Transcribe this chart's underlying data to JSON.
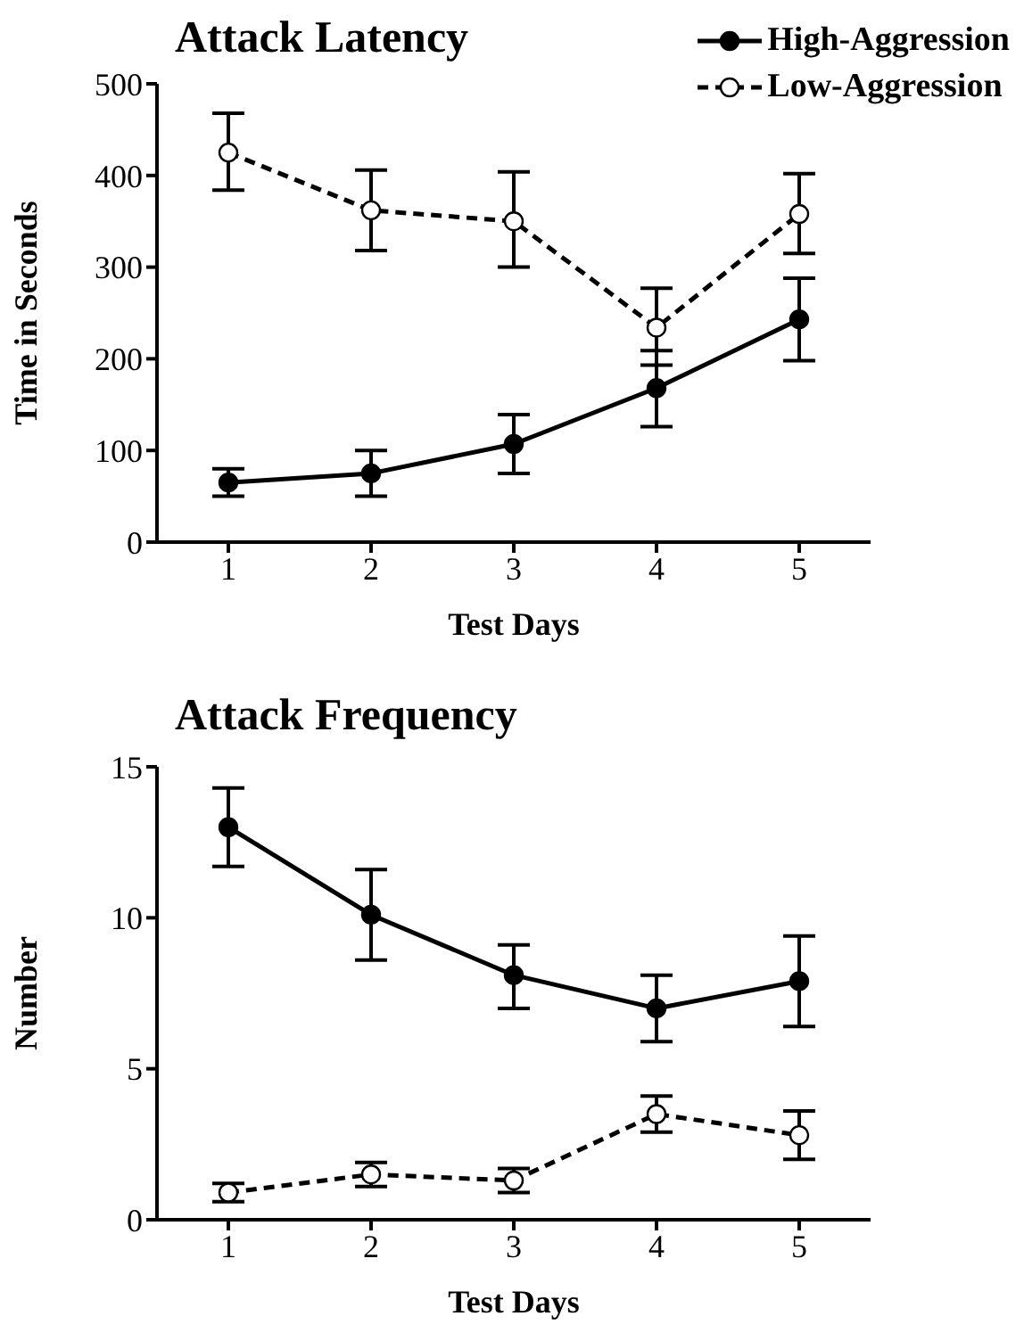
{
  "chart_data": [
    {
      "type": "line",
      "title": "Attack Latency",
      "xlabel": "Test Days",
      "ylabel": "Time in Seconds",
      "x": [
        1,
        2,
        3,
        4,
        5
      ],
      "xlim": [
        0.5,
        5.5
      ],
      "xticks": [
        1,
        2,
        3,
        4,
        5
      ],
      "ylim": [
        0,
        500
      ],
      "yticks": [
        0,
        100,
        200,
        300,
        400,
        500
      ],
      "legend": "top right",
      "marker": "circle",
      "series": [
        {
          "name": "High-Aggression",
          "color": "#000000",
          "line_style": "solid",
          "values": [
            65,
            75,
            107,
            168,
            243
          ],
          "errors": [
            [
              50,
              80
            ],
            [
              50,
              100
            ],
            [
              75,
              139
            ],
            [
              126,
              209
            ],
            [
              198,
              288
            ]
          ]
        },
        {
          "name": "Low-Aggression",
          "color": "#000000",
          "line_style": "dashed",
          "values": [
            425,
            362,
            350,
            234,
            358
          ],
          "errors": [
            [
              384,
              468
            ],
            [
              318,
              406
            ],
            [
              300,
              404
            ],
            [
              193,
              277
            ],
            [
              315,
              402
            ]
          ]
        }
      ]
    },
    {
      "type": "line",
      "title": "Attack Frequency",
      "xlabel": "Test Days",
      "ylabel": "Number",
      "x": [
        1,
        2,
        3,
        4,
        5
      ],
      "xlim": [
        0.5,
        5.5
      ],
      "xticks": [
        1,
        2,
        3,
        4,
        5
      ],
      "ylim": [
        0,
        15
      ],
      "yticks": [
        0,
        5,
        10,
        15
      ],
      "marker": "circle",
      "series": [
        {
          "color": "#000000",
          "line_style": "solid",
          "values": [
            13.0,
            10.1,
            8.1,
            7.0,
            7.9
          ],
          "errors": [
            [
              11.7,
              14.3
            ],
            [
              8.6,
              11.6
            ],
            [
              7.0,
              9.1
            ],
            [
              5.9,
              8.1
            ],
            [
              6.4,
              9.4
            ]
          ]
        },
        {
          "color": "#000000",
          "line_style": "dashed",
          "values": [
            0.9,
            1.5,
            1.3,
            3.5,
            2.8
          ],
          "errors": [
            [
              0.6,
              1.2
            ],
            [
              1.1,
              1.9
            ],
            [
              0.9,
              1.7
            ],
            [
              2.9,
              4.1
            ],
            [
              2.0,
              3.6
            ]
          ]
        }
      ]
    }
  ]
}
